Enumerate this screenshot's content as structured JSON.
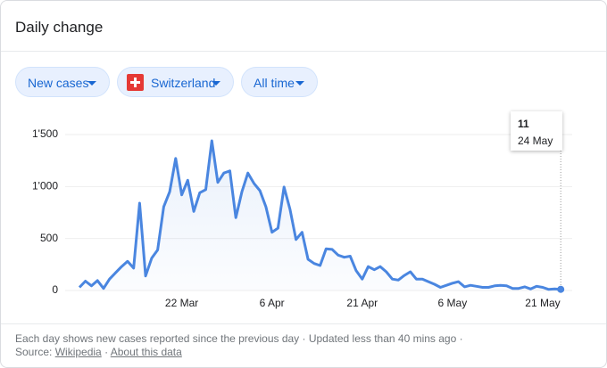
{
  "header": {
    "title": "Daily change"
  },
  "filters": [
    {
      "label": "New cases"
    },
    {
      "label": "Switzerland"
    },
    {
      "label": "All time"
    }
  ],
  "chart_data": {
    "type": "line",
    "color": "#4a86e0",
    "grid": true,
    "categories": [
      null,
      null,
      null,
      null,
      null,
      null,
      null,
      null,
      null,
      null,
      null,
      null,
      null,
      null,
      null,
      null,
      null,
      "22 Mar",
      null,
      null,
      null,
      null,
      null,
      null,
      null,
      null,
      null,
      null,
      null,
      null,
      null,
      null,
      "6 Apr",
      null,
      null,
      null,
      null,
      null,
      null,
      null,
      null,
      null,
      null,
      null,
      null,
      null,
      null,
      "21 Apr",
      null,
      null,
      null,
      null,
      null,
      null,
      null,
      null,
      null,
      null,
      null,
      null,
      null,
      null,
      "6 May",
      null,
      null,
      null,
      null,
      null,
      null,
      null,
      null,
      null,
      null,
      null,
      null,
      null,
      null,
      "21 May",
      null,
      null,
      "24 May"
    ],
    "values": [
      30,
      90,
      45,
      95,
      20,
      110,
      170,
      230,
      280,
      215,
      840,
      140,
      310,
      390,
      805,
      950,
      1270,
      920,
      1060,
      760,
      940,
      970,
      1440,
      1040,
      1130,
      1150,
      700,
      950,
      1130,
      1030,
      960,
      805,
      560,
      600,
      995,
      780,
      490,
      560,
      300,
      260,
      240,
      400,
      395,
      340,
      320,
      330,
      190,
      110,
      230,
      200,
      230,
      180,
      110,
      100,
      145,
      180,
      110,
      110,
      85,
      60,
      30,
      50,
      70,
      85,
      35,
      50,
      40,
      30,
      30,
      45,
      50,
      45,
      20,
      20,
      35,
      15,
      40,
      30,
      10,
      15,
      11
    ],
    "ylim": [
      0,
      1500
    ],
    "yticks": [
      0,
      500,
      {
        "value": 1000,
        "label": "1'000"
      },
      {
        "value": 1500,
        "label": "1'500"
      }
    ]
  },
  "footer": {
    "note": "Each day shows new cases reported since the previous day · Updated less than 40 mins ago ·",
    "source_label": "Source:",
    "source_link": "Wikipedia",
    "separator": "·",
    "about_link": "About this data"
  }
}
